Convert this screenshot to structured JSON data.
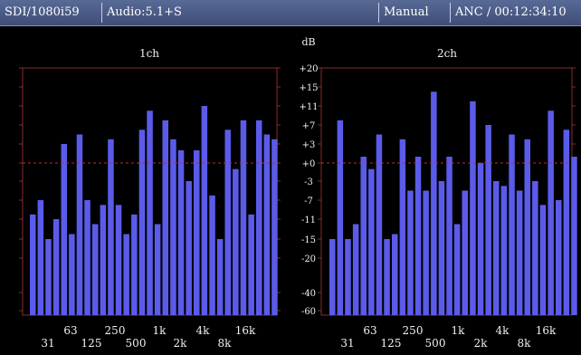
{
  "status_bar": {
    "format": "SDI/1080i59",
    "audio": "Audio:5.1+S",
    "mode": "Manual",
    "anc_timecode": "ANC / 00:12:34:10"
  },
  "colors": {
    "bar": "#5b5bea",
    "frame": "#8a2a2a",
    "reference": "#8a2a2a",
    "background": "#000000",
    "status_bar": "#4a5a86"
  },
  "chart_data": [
    {
      "type": "bar",
      "title": "1ch",
      "ylabel": "dB",
      "scale": "nonlinear",
      "ylim": [
        -60,
        20
      ],
      "reference_level": 0,
      "x_tick_labels_upper": [
        "63",
        "250",
        "1k",
        "4k",
        "16k"
      ],
      "x_tick_labels_lower": [
        "31",
        "125",
        "500",
        "2k",
        "8k"
      ],
      "values": [
        -10,
        -7,
        -15,
        -11,
        3,
        -14,
        5,
        -7,
        -12,
        -8,
        4,
        -8,
        -14,
        -10,
        6,
        10,
        -12,
        8,
        4,
        2,
        -3,
        2,
        11,
        -6,
        -15,
        6,
        -1,
        8,
        -10,
        8,
        5,
        4
      ]
    },
    {
      "type": "bar",
      "title": "2ch",
      "ylabel": "dB",
      "scale": "nonlinear",
      "ylim": [
        -60,
        20
      ],
      "reference_level": 0,
      "x_tick_labels_upper": [
        "63",
        "250",
        "1k",
        "4k",
        "16k"
      ],
      "x_tick_labels_lower": [
        "31",
        "125",
        "500",
        "2k",
        "8k"
      ],
      "values": [
        -15,
        8,
        -15,
        -12,
        1,
        -1,
        5,
        -15,
        -14,
        4,
        -5,
        1,
        -5,
        14,
        -3,
        1,
        -12,
        -5,
        12,
        0,
        7,
        -3,
        -4,
        5,
        -5,
        4,
        -3,
        -8,
        10,
        -7,
        6,
        1
      ]
    }
  ],
  "scale_labels": [
    "+20",
    "+15",
    "+11",
    "+7",
    "+3",
    "+0",
    "-3",
    "-7",
    "-11",
    "-15",
    "-20",
    "-40",
    "-60"
  ]
}
